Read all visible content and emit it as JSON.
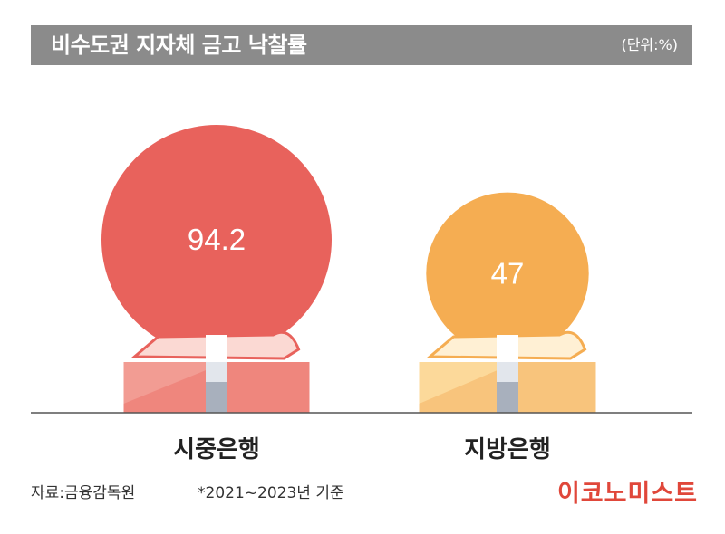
{
  "title": "비수도권 지자체 금고 낙찰률",
  "unit": "(단위:%)",
  "source": "자료:금융감독원",
  "note": "*2021~2023년 기준",
  "brand": "이코노미스트",
  "colors": {
    "header_bg": "#8b8b8b",
    "city_bank": "#e8625c",
    "regional_bank": "#f5ad52",
    "brand": "#e0473a"
  },
  "chart_data": {
    "type": "bar",
    "categories": [
      "시중은행",
      "지방은행"
    ],
    "values": [
      94.2,
      47
    ],
    "value_labels": [
      "94.2",
      "47"
    ]
  }
}
